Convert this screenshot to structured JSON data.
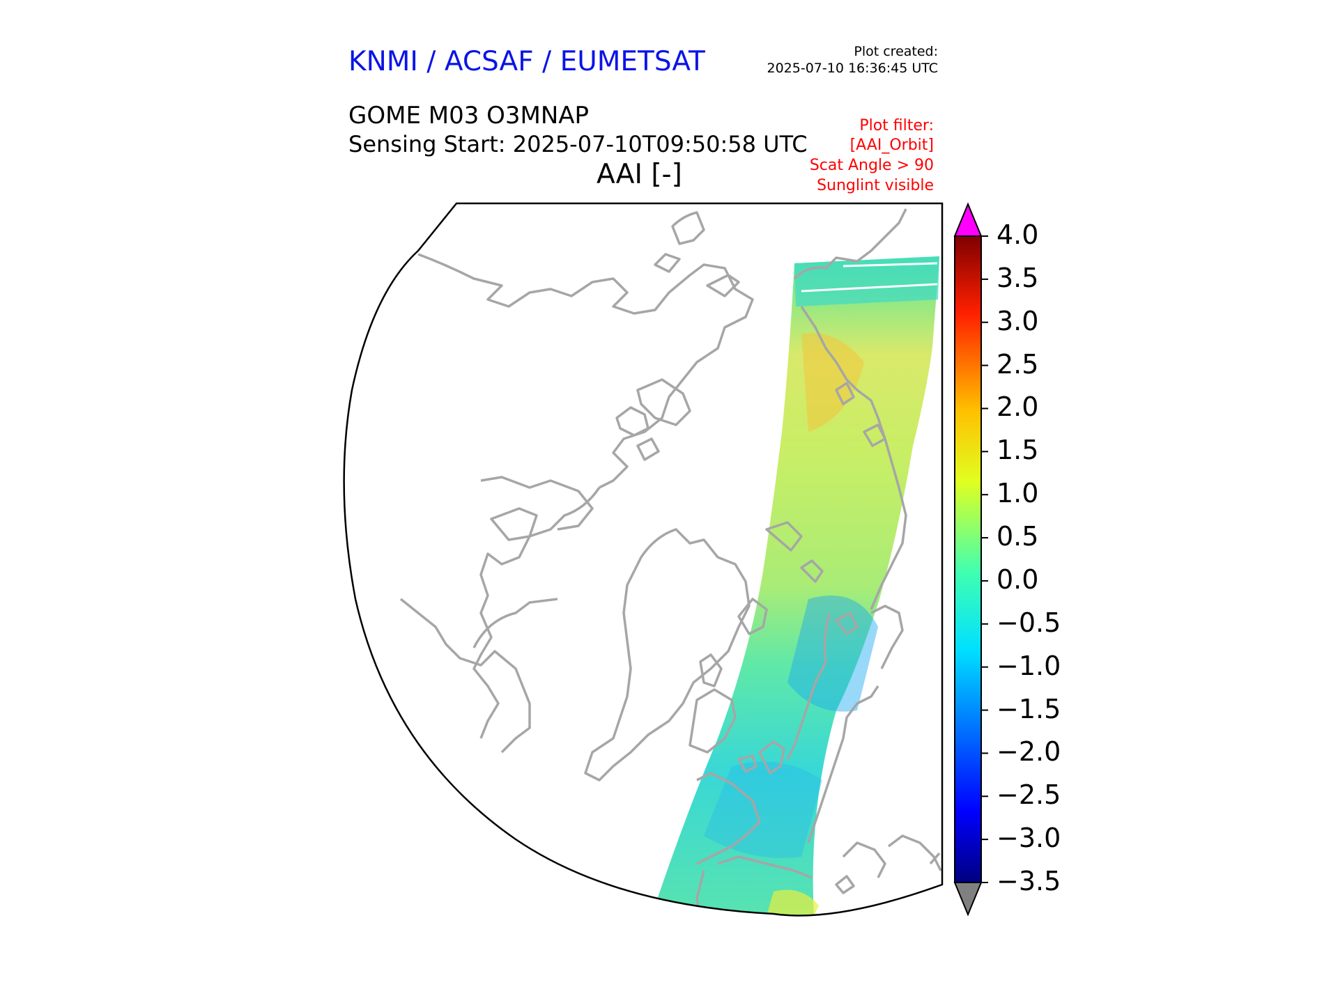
{
  "header": {
    "org": "KNMI / ACSAF / EUMETSAT",
    "plot_created_label": "Plot created:",
    "plot_created_value": "2025-07-10 16:36:45 UTC",
    "product": "GOME M03 O3MNAP",
    "sensing_start": "Sensing Start: 2025-07-10T09:50:58 UTC",
    "variable_title": "AAI [-]"
  },
  "plot_filter": [
    "Plot filter:",
    "[AAI_Orbit]",
    "Scat Angle > 90",
    "Sunglint visible"
  ],
  "colorbar": {
    "min": -3.5,
    "max": 4.0,
    "ticks": [
      "4.0",
      "3.5",
      "3.0",
      "2.5",
      "2.0",
      "1.5",
      "1.0",
      "0.5",
      "0.0",
      "−0.5",
      "−1.0",
      "−1.5",
      "−2.0",
      "−2.5",
      "−3.0",
      "−3.5"
    ],
    "over_color": "#ff00ff",
    "under_color": "#808080",
    "colormap": "jet"
  },
  "colors": {
    "org_title": "#0a14e6",
    "filter_text": "#ff0000",
    "coastline": "#a0a0a0"
  }
}
